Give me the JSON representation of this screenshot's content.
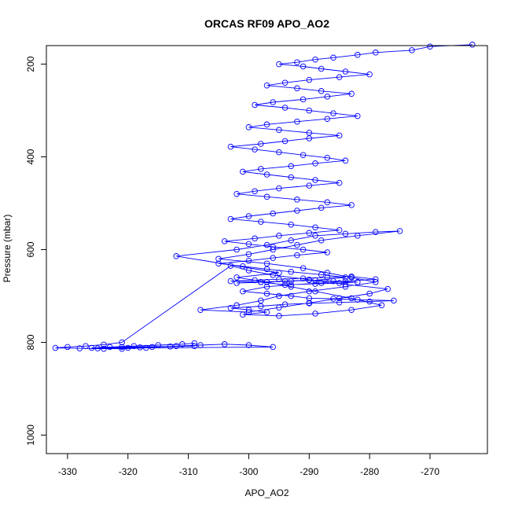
{
  "chart_data": {
    "type": "scatter",
    "title": "ORCAS RF09 APO_AO2",
    "xlabel": "APO_AO2",
    "ylabel": "Pressure (mbar)",
    "xlim": [
      -333.5,
      -260.5
    ],
    "ylim": [
      1040,
      160
    ],
    "y_reversed": true,
    "x_ticks": [
      -330,
      -320,
      -310,
      -300,
      -290,
      -280,
      -270
    ],
    "y_ticks": [
      200,
      400,
      600,
      800,
      1000
    ],
    "grid": false,
    "legend": "none",
    "style": "points connected by lines",
    "color": "#0000ff",
    "series": [
      {
        "x": [
          -263,
          -270,
          -273,
          -279,
          -282,
          -286,
          -289,
          -292,
          -295,
          -291,
          -288,
          -284,
          -280,
          -285,
          -290,
          -294,
          -297,
          -292,
          -288,
          -283,
          -287,
          -291,
          -296,
          -299,
          -294,
          -290,
          -286,
          -282,
          -287,
          -292,
          -297,
          -300,
          -295,
          -290,
          -285,
          -290,
          -294,
          -298,
          -303,
          -299,
          -295,
          -291,
          -287,
          -284,
          -289,
          -293,
          -298,
          -301,
          -297,
          -293,
          -289,
          -285,
          -290,
          -295,
          -299,
          -302,
          -297,
          -292,
          -287,
          -283,
          -288,
          -292,
          -296,
          -300,
          -303,
          -298,
          -293,
          -289,
          -285,
          -290,
          -295,
          -299,
          -304,
          -300,
          -296,
          -291,
          -287,
          -292,
          -296,
          -300,
          -305,
          -301,
          -297,
          -293,
          -288,
          -284,
          -289,
          -293,
          -297,
          -302,
          -298,
          -294,
          -290,
          -286,
          -282,
          -285,
          -289,
          -294,
          -298,
          -303,
          -299,
          -295,
          -291,
          -287,
          -283,
          -279,
          -284,
          -288,
          -293,
          -297,
          -301,
          -297,
          -293,
          -290,
          -286,
          -282,
          -276,
          -280,
          -285,
          -290,
          -294,
          -298,
          -303,
          -300,
          -297,
          -301,
          -295,
          -289,
          -283,
          -278,
          -283,
          -289,
          -293,
          -297,
          -302,
          -295,
          -312,
          -302,
          -297,
          -293,
          -289,
          -284,
          -279,
          -275,
          -282,
          -288,
          -292,
          -296,
          -300,
          -305,
          -297,
          -291,
          -287,
          -283,
          -279,
          -284,
          -290,
          -295,
          -298,
          -302,
          -308,
          -300,
          -295,
          -290,
          -285,
          -280,
          -277,
          -284,
          -290,
          -296,
          -300,
          -303,
          -321,
          -324,
          -327,
          -330,
          -332,
          -328,
          -324,
          -320,
          -316,
          -312,
          -308,
          -304,
          -300,
          -296,
          -317,
          -321,
          -325,
          -318,
          -313,
          -309,
          -321,
          -326,
          -323,
          -319,
          -315,
          -311,
          -309
        ],
        "y": [
          158,
          162,
          170,
          175,
          180,
          186,
          190,
          196,
          200,
          205,
          210,
          216,
          222,
          228,
          234,
          240,
          246,
          252,
          258,
          264,
          270,
          276,
          282,
          288,
          294,
          300,
          306,
          312,
          318,
          324,
          330,
          336,
          342,
          348,
          354,
          360,
          366,
          372,
          378,
          384,
          390,
          396,
          402,
          408,
          414,
          420,
          426,
          432,
          438,
          444,
          450,
          456,
          462,
          468,
          474,
          480,
          486,
          492,
          498,
          504,
          510,
          516,
          522,
          528,
          534,
          540,
          546,
          552,
          558,
          564,
          570,
          576,
          582,
          588,
          594,
          600,
          606,
          612,
          618,
          624,
          630,
          636,
          642,
          648,
          654,
          660,
          666,
          668,
          670,
          672,
          670,
          668,
          666,
          668,
          670,
          672,
          674,
          676,
          670,
          668,
          666,
          664,
          662,
          660,
          658,
          664,
          668,
          672,
          676,
          680,
          690,
          695,
          700,
          705,
          706,
          708,
          710,
          712,
          714,
          716,
          718,
          722,
          726,
          730,
          735,
          740,
          743,
          738,
          730,
          720,
          705,
          690,
          680,
          670,
          660,
          650,
          614,
          600,
          590,
          580,
          570,
          566,
          562,
          560,
          570,
          580,
          590,
          600,
          610,
          620,
          630,
          640,
          650,
          660,
          670,
          680,
          690,
          700,
          710,
          720,
          730,
          735,
          725,
          715,
          705,
          695,
          685,
          675,
          665,
          655,
          645,
          635,
          800,
          805,
          808,
          810,
          812,
          813,
          814,
          812,
          810,
          808,
          806,
          804,
          806,
          810,
          812,
          814,
          813,
          811,
          809,
          808,
          810,
          812,
          810,
          808,
          806,
          804,
          802
        ]
      }
    ]
  }
}
